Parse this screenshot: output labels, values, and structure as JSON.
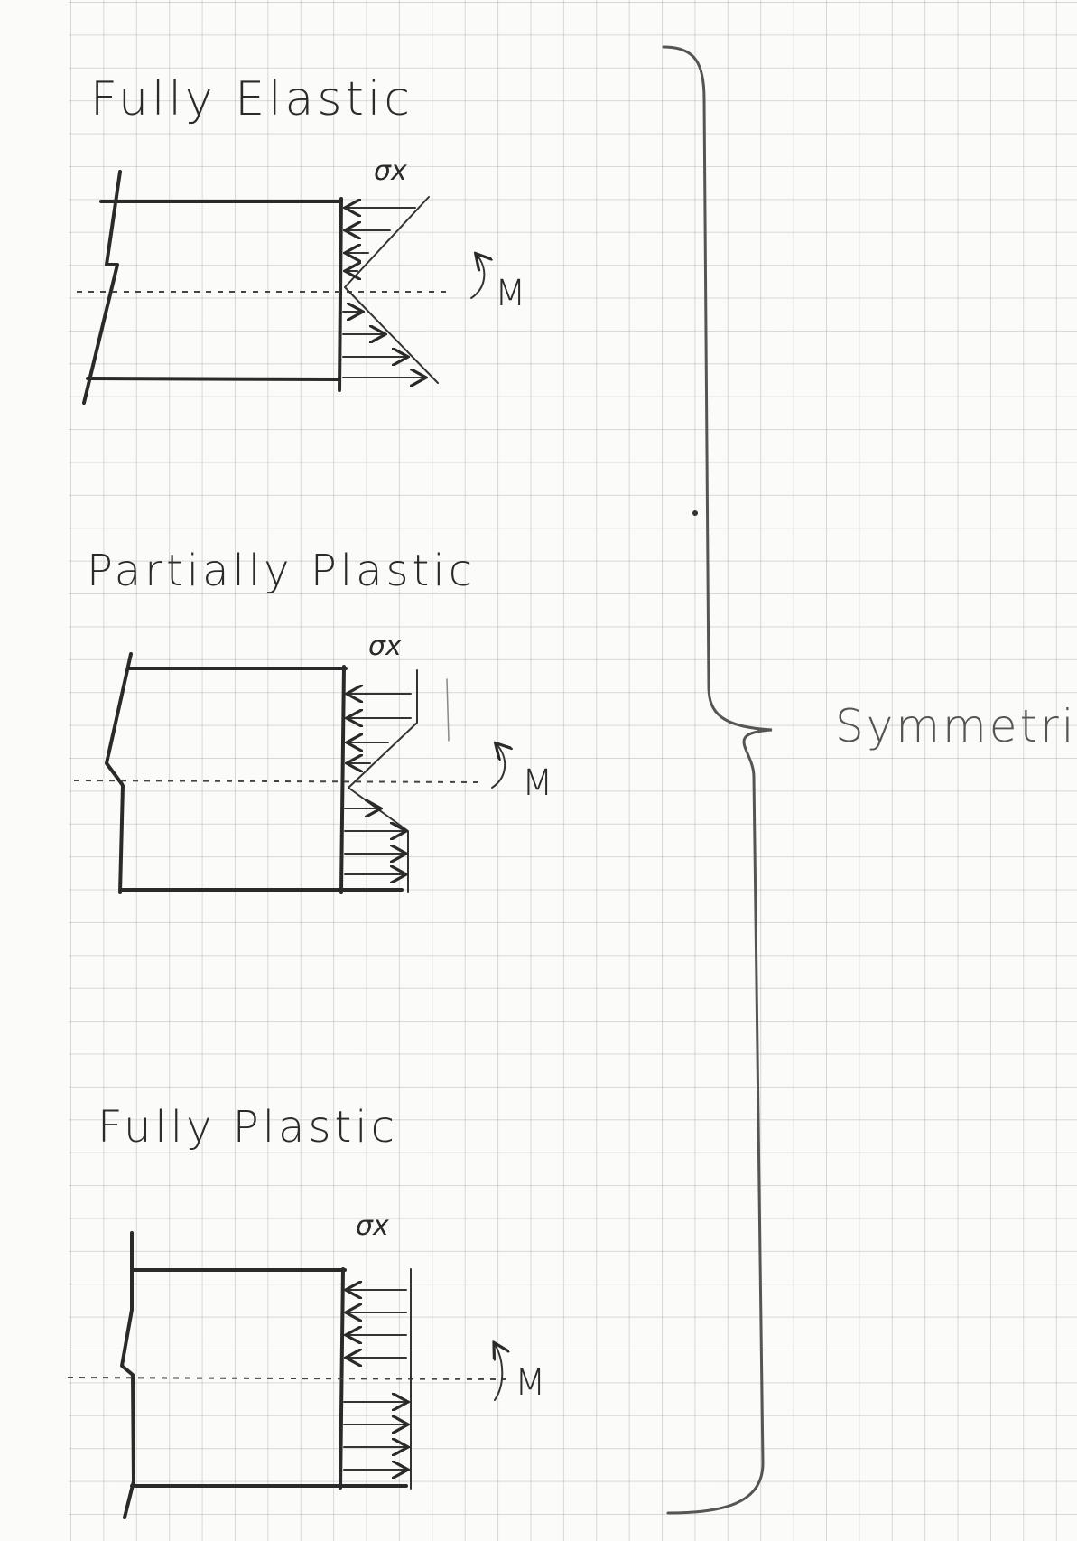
{
  "cases": [
    {
      "title": "Fully Elastic",
      "stress_label": "σx",
      "moment_label": "M"
    },
    {
      "title": "Partially Plastic",
      "stress_label": "σx",
      "moment_label": "M"
    },
    {
      "title": "Fully Plastic",
      "stress_label": "σx",
      "moment_label": "M"
    }
  ],
  "brace_label": "Symmetric"
}
